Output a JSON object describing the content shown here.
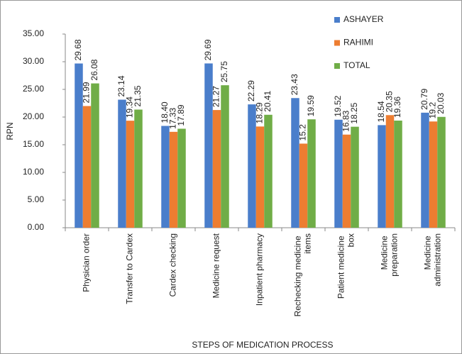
{
  "chart_data": {
    "type": "bar",
    "y_label": "RPN",
    "x_label": "STEPS OF MEDICATION PROCESS",
    "categories": [
      "Physician order",
      "Transfer to Cardex",
      "Cardex checking",
      "Medicine request",
      "Inpatient pharmacy",
      "Rechecking medicine items",
      "Patient medicine box",
      "Medicine preparation",
      "Medicine administration"
    ],
    "series": [
      {
        "name": "ASHAYER",
        "color": "#4a7ecb",
        "values": [
          29.68,
          23.14,
          18.4,
          29.69,
          22.29,
          23.43,
          19.52,
          18.54,
          20.79
        ],
        "value_labels": [
          "29.68",
          "23.14",
          "18.40",
          "29.69",
          "22.29",
          "23.43",
          "19.52",
          "18.54",
          "20.79"
        ]
      },
      {
        "name": "RAHIMI",
        "color": "#ed7d31",
        "values": [
          21.99,
          19.34,
          17.33,
          21.27,
          18.29,
          15.2,
          16.83,
          20.35,
          19.2
        ]
      },
      {
        "name": "TOTAL",
        "color": "#70ad47",
        "values": [
          26.08,
          21.35,
          17.89,
          25.75,
          20.41,
          19.59,
          18.25,
          19.36,
          20.03
        ]
      }
    ],
    "ylim": [
      0,
      35
    ],
    "yticks": [
      {
        "value": 0,
        "label": "0.00"
      },
      {
        "value": 5,
        "label": "5.00"
      },
      {
        "value": 10,
        "label": "10.00"
      },
      {
        "value": 15,
        "label": "15.00"
      },
      {
        "value": 20,
        "label": "20.00"
      },
      {
        "value": 25,
        "label": "25.00"
      },
      {
        "value": 30,
        "label": "30.00"
      },
      {
        "value": 35,
        "label": "35.00"
      }
    ],
    "legend": "top-right"
  }
}
